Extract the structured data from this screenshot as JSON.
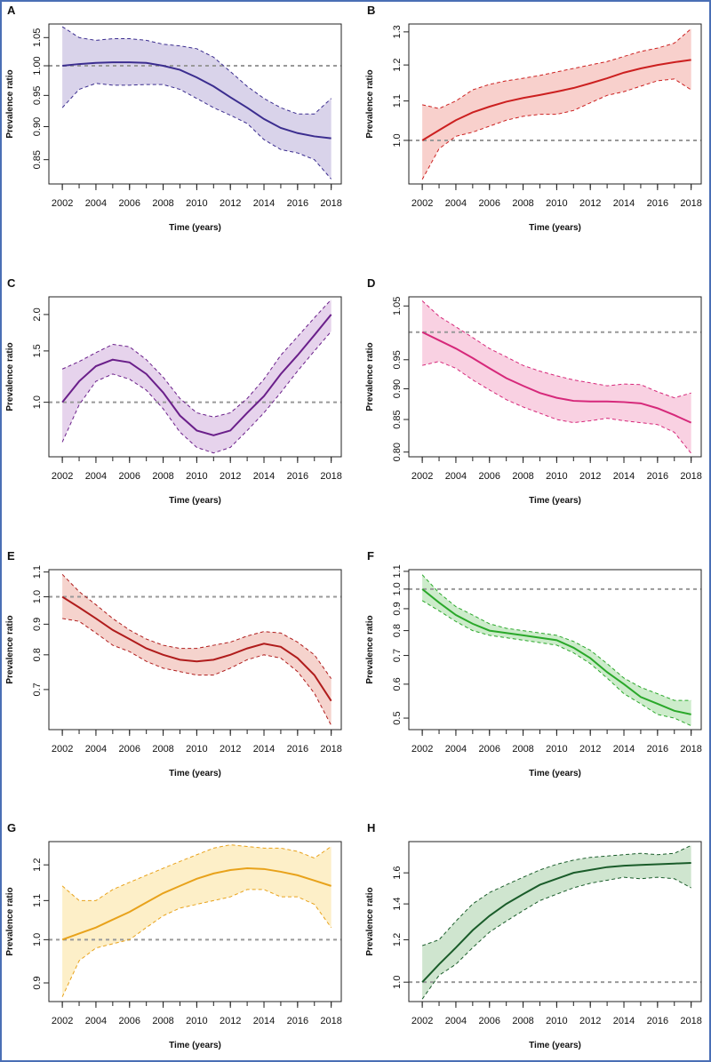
{
  "chart_data": [
    {
      "type": "line",
      "title": "A",
      "xlabel": "Time (years)",
      "ylabel": "Prevalence ratio",
      "log_y": true,
      "x": [
        2002,
        2003,
        2004,
        2005,
        2006,
        2007,
        2008,
        2009,
        2010,
        2011,
        2012,
        2013,
        2014,
        2015,
        2016,
        2017,
        2018
      ],
      "values": [
        1.0,
        1.003,
        1.005,
        1.006,
        1.006,
        1.005,
        1.0,
        0.993,
        0.98,
        0.965,
        0.947,
        0.93,
        0.912,
        0.898,
        0.89,
        0.885,
        0.882
      ],
      "upper": [
        1.07,
        1.05,
        1.045,
        1.048,
        1.048,
        1.045,
        1.038,
        1.035,
        1.03,
        1.015,
        0.99,
        0.965,
        0.945,
        0.93,
        0.92,
        0.92,
        0.945
      ],
      "lower": [
        0.93,
        0.96,
        0.97,
        0.967,
        0.967,
        0.968,
        0.968,
        0.96,
        0.945,
        0.93,
        0.918,
        0.905,
        0.88,
        0.865,
        0.86,
        0.85,
        0.822
      ],
      "color": "#3b2d8f",
      "fill_color": "#d9d3ea",
      "reference_line": 1,
      "xlim": [
        2001.2,
        2018.6
      ],
      "xticks": [
        2002,
        2004,
        2006,
        2008,
        2010,
        2012,
        2014,
        2016,
        2018
      ],
      "ylim": [
        0.815,
        1.075
      ],
      "yticks": [
        0.85,
        {
          "value": 0.9,
          "label": "0.90"
        },
        0.95,
        {
          "value": 1,
          "label": "1.00"
        },
        1.05
      ]
    },
    {
      "type": "line",
      "title": "B",
      "xlabel": "Time (years)",
      "ylabel": "Prevalence ratio",
      "log_y": true,
      "x": [
        2002,
        2003,
        2004,
        2005,
        2006,
        2007,
        2008,
        2009,
        2010,
        2011,
        2012,
        2013,
        2014,
        2015,
        2016,
        2017,
        2018
      ],
      "values": [
        1.0,
        1.025,
        1.05,
        1.07,
        1.085,
        1.098,
        1.108,
        1.116,
        1.125,
        1.135,
        1.148,
        1.162,
        1.178,
        1.19,
        1.2,
        1.208,
        1.215
      ],
      "upper": [
        1.09,
        1.08,
        1.1,
        1.13,
        1.145,
        1.155,
        1.162,
        1.17,
        1.18,
        1.19,
        1.2,
        1.21,
        1.225,
        1.24,
        1.25,
        1.265,
        1.31
      ],
      "lower": [
        0.91,
        0.98,
        1.01,
        1.02,
        1.035,
        1.05,
        1.06,
        1.065,
        1.065,
        1.075,
        1.095,
        1.115,
        1.125,
        1.14,
        1.155,
        1.16,
        1.13
      ],
      "color": "#cc2020",
      "fill_color": "#f8d0cc",
      "reference_line": 1,
      "xlim": [
        2001.2,
        2018.6
      ],
      "xticks": [
        2002,
        2004,
        2006,
        2008,
        2010,
        2012,
        2014,
        2016,
        2018
      ],
      "ylim": [
        0.9,
        1.325
      ],
      "yticks": [
        {
          "value": 1,
          "label": "1.0"
        },
        1.1,
        1.2,
        1.3
      ]
    },
    {
      "type": "line",
      "title": "C",
      "xlabel": "Time (years)",
      "ylabel": "Prevalence ratio",
      "log_y": true,
      "x": [
        2002,
        2003,
        2004,
        2005,
        2006,
        2007,
        2008,
        2009,
        2010,
        2011,
        2012,
        2013,
        2014,
        2015,
        2016,
        2017,
        2018
      ],
      "values": [
        1.0,
        1.18,
        1.33,
        1.4,
        1.37,
        1.25,
        1.08,
        0.9,
        0.8,
        0.77,
        0.8,
        0.92,
        1.05,
        1.25,
        1.45,
        1.7,
        2.0
      ],
      "upper": [
        1.3,
        1.38,
        1.48,
        1.58,
        1.55,
        1.4,
        1.22,
        1.03,
        0.92,
        0.89,
        0.92,
        1.03,
        1.2,
        1.45,
        1.68,
        1.95,
        2.25
      ],
      "lower": [
        0.73,
        0.98,
        1.18,
        1.25,
        1.2,
        1.1,
        0.95,
        0.79,
        0.7,
        0.67,
        0.7,
        0.8,
        0.92,
        1.08,
        1.28,
        1.5,
        1.75
      ],
      "color": "#6a1f8a",
      "fill_color": "#e6d3ec",
      "reference_line": 1,
      "xlim": [
        2001.2,
        2018.6
      ],
      "xticks": [
        2002,
        2004,
        2006,
        2008,
        2010,
        2012,
        2014,
        2016,
        2018
      ],
      "ylim": [
        0.65,
        2.3
      ],
      "yticks": [
        {
          "value": 1,
          "label": "1.0"
        },
        1.5,
        {
          "value": 2,
          "label": "2.0"
        }
      ]
    },
    {
      "type": "line",
      "title": "D",
      "xlabel": "Time (years)",
      "ylabel": "Prevalence ratio",
      "log_y": true,
      "x": [
        2002,
        2003,
        2004,
        2005,
        2006,
        2007,
        2008,
        2009,
        2010,
        2011,
        2012,
        2013,
        2014,
        2015,
        2016,
        2017,
        2018
      ],
      "values": [
        1.0,
        0.985,
        0.97,
        0.953,
        0.935,
        0.918,
        0.905,
        0.893,
        0.885,
        0.88,
        0.879,
        0.879,
        0.878,
        0.876,
        0.868,
        0.857,
        0.845
      ],
      "upper": [
        1.06,
        1.03,
        1.01,
        0.99,
        0.97,
        0.955,
        0.94,
        0.93,
        0.922,
        0.915,
        0.91,
        0.905,
        0.908,
        0.907,
        0.895,
        0.885,
        0.893
      ],
      "lower": [
        0.94,
        0.947,
        0.935,
        0.915,
        0.898,
        0.882,
        0.87,
        0.86,
        0.85,
        0.845,
        0.848,
        0.852,
        0.848,
        0.845,
        0.842,
        0.83,
        0.798
      ],
      "color": "#d6287a",
      "fill_color": "#f9d1e2",
      "reference_line": 1,
      "xlim": [
        2001.2,
        2018.6
      ],
      "xticks": [
        2002,
        2004,
        2006,
        2008,
        2010,
        2012,
        2014,
        2016,
        2018
      ],
      "ylim": [
        0.793,
        1.068
      ],
      "yticks": [
        {
          "value": 0.8,
          "label": "0.80"
        },
        0.85,
        {
          "value": 0.9,
          "label": "0.90"
        },
        0.95,
        1.05
      ]
    },
    {
      "type": "line",
      "title": "E",
      "xlabel": "Time (years)",
      "ylabel": "Prevalence ratio",
      "log_y": true,
      "x": [
        2002,
        2003,
        2004,
        2005,
        2006,
        2007,
        2008,
        2009,
        2010,
        2011,
        2012,
        2013,
        2014,
        2015,
        2016,
        2017,
        2018
      ],
      "values": [
        1.0,
        0.96,
        0.92,
        0.88,
        0.85,
        0.82,
        0.8,
        0.785,
        0.78,
        0.785,
        0.8,
        0.82,
        0.835,
        0.825,
        0.79,
        0.74,
        0.67
      ],
      "upper": [
        1.09,
        1.02,
        0.97,
        0.92,
        0.88,
        0.85,
        0.83,
        0.82,
        0.82,
        0.83,
        0.84,
        0.86,
        0.875,
        0.87,
        0.84,
        0.8,
        0.73
      ],
      "lower": [
        0.92,
        0.91,
        0.87,
        0.83,
        0.81,
        0.78,
        0.76,
        0.75,
        0.74,
        0.74,
        0.76,
        0.785,
        0.8,
        0.79,
        0.75,
        0.69,
        0.61
      ],
      "color": "#b01c1c",
      "fill_color": "#f5d3cd",
      "reference_line": 1,
      "xlim": [
        2001.2,
        2018.6
      ],
      "xticks": [
        2002,
        2004,
        2006,
        2008,
        2010,
        2012,
        2014,
        2016,
        2018
      ],
      "ylim": [
        0.6,
        1.11
      ],
      "yticks": [
        0.7,
        0.8,
        0.9,
        {
          "value": 1,
          "label": "1.0"
        },
        1.1
      ]
    },
    {
      "type": "line",
      "title": "F",
      "xlabel": "Time (years)",
      "ylabel": "Prevalence ratio",
      "log_y": true,
      "x": [
        2002,
        2003,
        2004,
        2005,
        2006,
        2007,
        2008,
        2009,
        2010,
        2011,
        2012,
        2013,
        2014,
        2015,
        2016,
        2017,
        2018
      ],
      "values": [
        1.0,
        0.93,
        0.87,
        0.83,
        0.8,
        0.79,
        0.78,
        0.77,
        0.76,
        0.73,
        0.69,
        0.64,
        0.6,
        0.56,
        0.54,
        0.52,
        0.51
      ],
      "upper": [
        1.08,
        0.98,
        0.91,
        0.87,
        0.83,
        0.81,
        0.8,
        0.79,
        0.78,
        0.755,
        0.72,
        0.67,
        0.62,
        0.59,
        0.57,
        0.55,
        0.55
      ],
      "lower": [
        0.94,
        0.89,
        0.84,
        0.8,
        0.78,
        0.77,
        0.76,
        0.75,
        0.74,
        0.71,
        0.67,
        0.62,
        0.57,
        0.54,
        0.51,
        0.5,
        0.48
      ],
      "color": "#2aa82a",
      "fill_color": "#cdeccb",
      "reference_line": 1,
      "xlim": [
        2001.2,
        2018.6
      ],
      "xticks": [
        2002,
        2004,
        2006,
        2008,
        2010,
        2012,
        2014,
        2016,
        2018
      ],
      "ylim": [
        0.47,
        1.11
      ],
      "yticks": [
        0.5,
        0.6,
        0.7,
        0.8,
        0.9,
        {
          "value": 1,
          "label": "1.0"
        },
        1.1
      ]
    },
    {
      "type": "line",
      "title": "G",
      "xlabel": "Time (years)",
      "ylabel": "Prevalence ratio",
      "log_y": true,
      "x": [
        2002,
        2003,
        2004,
        2005,
        2006,
        2007,
        2008,
        2009,
        2010,
        2011,
        2012,
        2013,
        2014,
        2015,
        2016,
        2017,
        2018
      ],
      "values": [
        1.0,
        1.015,
        1.03,
        1.05,
        1.07,
        1.095,
        1.12,
        1.14,
        1.16,
        1.175,
        1.185,
        1.19,
        1.188,
        1.18,
        1.17,
        1.155,
        1.14
      ],
      "upper": [
        1.14,
        1.1,
        1.1,
        1.13,
        1.15,
        1.17,
        1.19,
        1.21,
        1.23,
        1.25,
        1.26,
        1.255,
        1.25,
        1.25,
        1.24,
        1.22,
        1.255
      ],
      "lower": [
        0.87,
        0.95,
        0.98,
        0.99,
        1.0,
        1.03,
        1.06,
        1.08,
        1.09,
        1.1,
        1.11,
        1.13,
        1.13,
        1.11,
        1.11,
        1.09,
        1.03
      ],
      "color": "#e8a21b",
      "fill_color": "#fdefc8",
      "reference_line": 1,
      "xlim": [
        2001.2,
        2018.6
      ],
      "xticks": [
        2002,
        2004,
        2006,
        2008,
        2010,
        2012,
        2014,
        2016,
        2018
      ],
      "ylim": [
        0.86,
        1.27
      ],
      "yticks": [
        0.9,
        {
          "value": 1,
          "label": "1.0"
        },
        1.1,
        1.2
      ]
    },
    {
      "type": "line",
      "title": "H",
      "xlabel": "Time (years)",
      "ylabel": "Prevalence ratio",
      "log_y": true,
      "x": [
        2002,
        2003,
        2004,
        2005,
        2006,
        2007,
        2008,
        2009,
        2010,
        2011,
        2012,
        2013,
        2014,
        2015,
        2016,
        2017,
        2018
      ],
      "values": [
        1.0,
        1.08,
        1.16,
        1.25,
        1.33,
        1.4,
        1.46,
        1.52,
        1.56,
        1.6,
        1.62,
        1.64,
        1.65,
        1.655,
        1.66,
        1.665,
        1.67
      ],
      "upper": [
        1.17,
        1.2,
        1.3,
        1.4,
        1.47,
        1.52,
        1.57,
        1.62,
        1.66,
        1.69,
        1.71,
        1.72,
        1.73,
        1.74,
        1.73,
        1.74,
        1.8
      ],
      "lower": [
        0.93,
        1.03,
        1.08,
        1.16,
        1.24,
        1.3,
        1.36,
        1.42,
        1.46,
        1.5,
        1.53,
        1.55,
        1.57,
        1.56,
        1.57,
        1.56,
        1.5
      ],
      "color": "#1a5c2a",
      "fill_color": "#cfe5cf",
      "reference_line": 1,
      "xlim": [
        2001.2,
        2018.6
      ],
      "xticks": [
        2002,
        2004,
        2006,
        2008,
        2010,
        2012,
        2014,
        2016,
        2018
      ],
      "ylim": [
        0.92,
        1.83
      ],
      "yticks": [
        {
          "value": 1,
          "label": "1.0"
        },
        1.2,
        1.4,
        1.6
      ]
    }
  ]
}
